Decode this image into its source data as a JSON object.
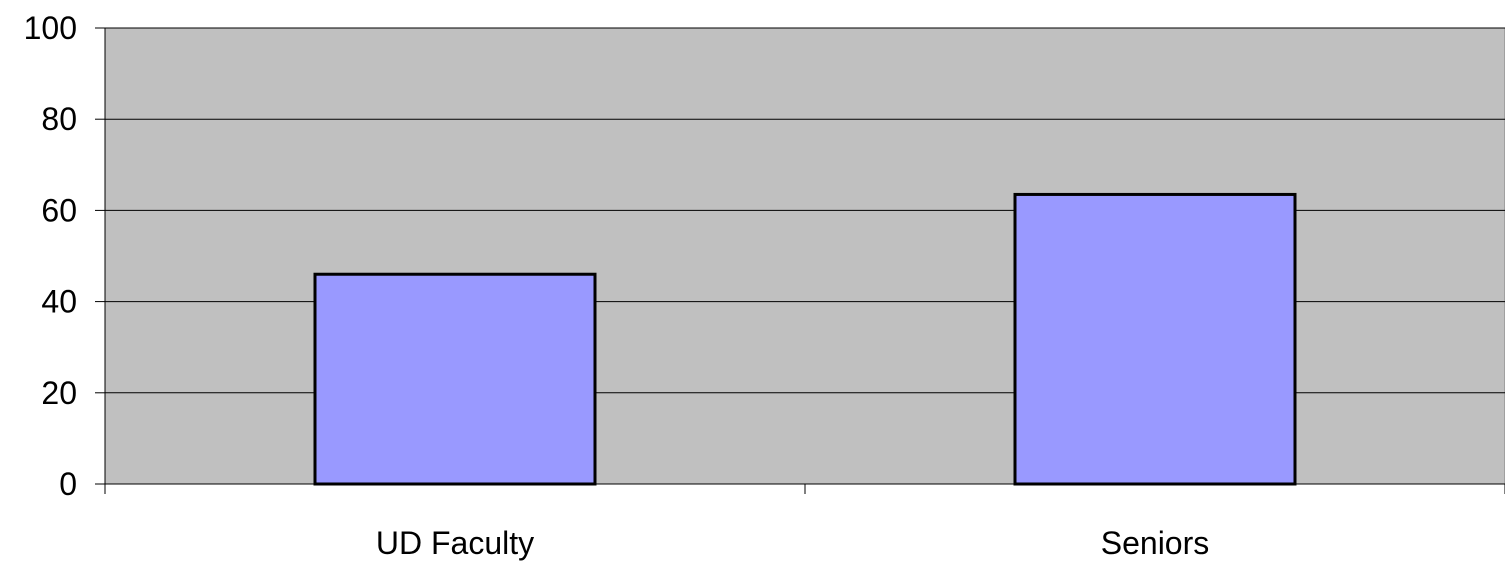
{
  "chart_data": {
    "type": "bar",
    "title": "",
    "xlabel": "",
    "ylabel": "",
    "categories": [
      "UD Faculty",
      "Seniors"
    ],
    "values": [
      46,
      63.5
    ],
    "ylim": [
      0,
      100
    ],
    "yticks": [
      "0",
      "20",
      "40",
      "60",
      "80",
      "100"
    ],
    "grid": true,
    "legend": "none",
    "colors": {
      "plot_background": "#c0c0c0",
      "bar_fill": "#9999ff",
      "bar_stroke": "#000000",
      "gridline": "#000000"
    }
  }
}
